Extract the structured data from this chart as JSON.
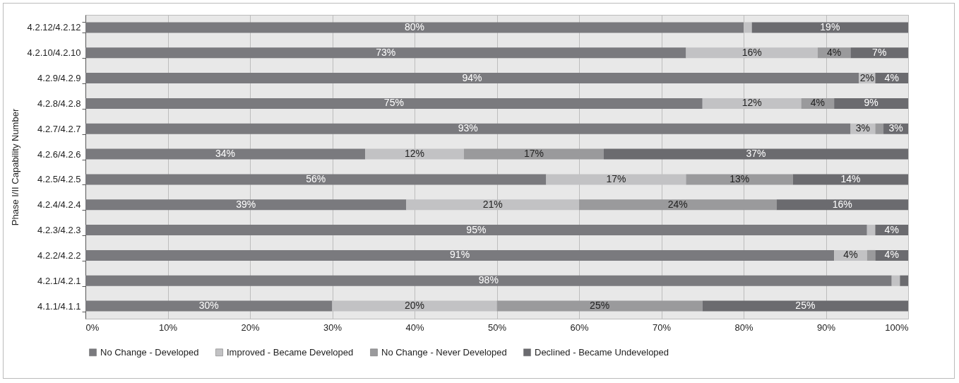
{
  "chart_data": {
    "type": "bar",
    "orientation": "horizontal",
    "stacked": true,
    "ylabel": "Phase I/II Capability Number",
    "categories": [
      "4.2.12/4.2.12",
      "4.2.10/4.2.10",
      "4.2.9/4.2.9",
      "4.2.8/4.2.8",
      "4.2.7/4.2.7",
      "4.2.6/4.2.6",
      "4.2.5/4.2.5",
      "4.2.4/4.2.4",
      "4.2.3/4.2.3",
      "4.2.2/4.2.2",
      "4.2.1/4.2.1",
      "4.1.1/4.1.1"
    ],
    "series": [
      {
        "name": "No Change - Developed",
        "color": "#7a7a7e",
        "values": [
          80,
          73,
          94,
          75,
          93,
          34,
          56,
          39,
          95,
          91,
          98,
          30
        ],
        "value_labels": [
          "80%",
          "73%",
          "94%",
          "75%",
          "93%",
          "34%",
          "56%",
          "39%",
          "95%",
          "91%",
          "98%",
          "30%"
        ]
      },
      {
        "name": "Improved - Became Developed",
        "color": "#c2c2c4",
        "values": [
          1,
          16,
          2,
          12,
          3,
          12,
          17,
          21,
          1,
          4,
          1,
          20
        ],
        "value_labels": [
          null,
          "16%",
          "2%",
          "12%",
          "3%",
          "12%",
          "17%",
          "21%",
          null,
          "4%",
          null,
          "20%"
        ]
      },
      {
        "name": "No Change - Never Developed",
        "color": "#9a9a9c",
        "values": [
          0,
          4,
          0,
          4,
          1,
          17,
          13,
          24,
          0,
          1,
          0,
          25
        ],
        "value_labels": [
          null,
          "4%",
          null,
          "4%",
          null,
          "17%",
          "13%",
          "24%",
          null,
          null,
          null,
          "25%"
        ]
      },
      {
        "name": "Declined - Became Undeveloped",
        "color": "#6b6b6f",
        "values": [
          19,
          7,
          4,
          9,
          3,
          37,
          14,
          16,
          4,
          4,
          1,
          25
        ],
        "value_labels": [
          "19%",
          "7%",
          "4%",
          "9%",
          "3%",
          "37%",
          "14%",
          "16%",
          "4%",
          "4%",
          null,
          "25%"
        ]
      }
    ],
    "xlim": [
      0,
      100
    ],
    "xticks": [
      {
        "value": 0,
        "label": "0%"
      },
      {
        "value": 10,
        "label": "10%"
      },
      {
        "value": 20,
        "label": "20%"
      },
      {
        "value": 30,
        "label": "30%"
      },
      {
        "value": 40,
        "label": "40%"
      },
      {
        "value": 50,
        "label": "50%"
      },
      {
        "value": 60,
        "label": "60%"
      },
      {
        "value": 70,
        "label": "70%"
      },
      {
        "value": 80,
        "label": "80%"
      },
      {
        "value": 90,
        "label": "90%"
      },
      {
        "value": 100,
        "label": "100%"
      }
    ],
    "grid": "x",
    "legend": "bottom"
  }
}
